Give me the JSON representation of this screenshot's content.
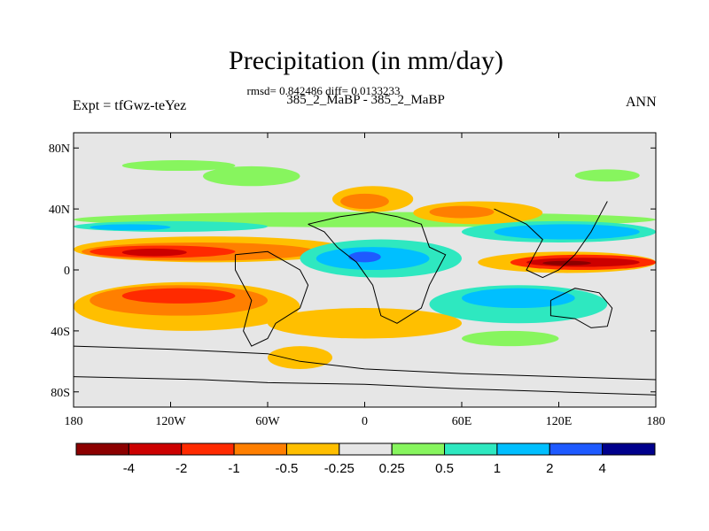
{
  "title": "Precipitation (in mm/day)",
  "stats_line": "rmsd= 0.842486 diff= 0.0133233",
  "subtitle": "385_2_MaBP - 385_2_MaBP",
  "left_label": "Expt = tfGwz-teYez",
  "right_label": "ANN",
  "map": {
    "lon_range": [
      -180,
      180
    ],
    "lat_range": [
      -90,
      90
    ],
    "x_ticks": [
      {
        "lon": -180,
        "label": "180"
      },
      {
        "lon": -120,
        "label": "120W"
      },
      {
        "lon": -60,
        "label": "60W"
      },
      {
        "lon": 0,
        "label": "0"
      },
      {
        "lon": 60,
        "label": "60E"
      },
      {
        "lon": 120,
        "label": "120E"
      },
      {
        "lon": 180,
        "label": "180"
      }
    ],
    "y_ticks": [
      {
        "lat": 80,
        "label": "80N"
      },
      {
        "lat": 40,
        "label": "40N"
      },
      {
        "lat": 0,
        "label": "0"
      },
      {
        "lat": -40,
        "label": "40S"
      },
      {
        "lat": -80,
        "label": "80S"
      }
    ],
    "background_color": "#e6e6e6",
    "colorbar": {
      "colors": [
        "#8c0000",
        "#cc0000",
        "#ff2a00",
        "#ff7f00",
        "#ffbf00",
        "#e6e6e6",
        "#87f55e",
        "#2ee8c0",
        "#00bfff",
        "#1e5aff",
        "#00008c"
      ],
      "labels": [
        "-4",
        "-2",
        "-1",
        "-0.5",
        "-0.25",
        "0.25",
        "0.5",
        "1",
        "2",
        "4"
      ]
    },
    "anomaly_regions": [
      {
        "level": "#87f55e",
        "lon": [
          -150,
          -80
        ],
        "lat": [
          65,
          72
        ]
      },
      {
        "level": "#87f55e",
        "lon": [
          -100,
          -40
        ],
        "lat": [
          55,
          68
        ]
      },
      {
        "level": "#87f55e",
        "lon": [
          130,
          170
        ],
        "lat": [
          58,
          66
        ]
      },
      {
        "level": "#87f55e",
        "lon": [
          -180,
          180
        ],
        "lat": [
          28,
          38
        ]
      },
      {
        "level": "#2ee8c0",
        "lon": [
          -180,
          -60
        ],
        "lat": [
          25,
          32
        ]
      },
      {
        "level": "#00bfff",
        "lon": [
          -170,
          -120
        ],
        "lat": [
          26,
          30
        ]
      },
      {
        "level": "#ffbf00",
        "lon": [
          -180,
          -10
        ],
        "lat": [
          5,
          22
        ]
      },
      {
        "level": "#ff7f00",
        "lon": [
          -175,
          -30
        ],
        "lat": [
          6,
          18
        ]
      },
      {
        "level": "#ff2a00",
        "lon": [
          -170,
          -80
        ],
        "lat": [
          8,
          16
        ]
      },
      {
        "level": "#cc0000",
        "lon": [
          -150,
          -110
        ],
        "lat": [
          9,
          14
        ]
      },
      {
        "level": "#ffbf00",
        "lon": [
          -180,
          -40
        ],
        "lat": [
          -40,
          -8
        ]
      },
      {
        "level": "#ff7f00",
        "lon": [
          -170,
          -60
        ],
        "lat": [
          -30,
          -10
        ]
      },
      {
        "level": "#ff2a00",
        "lon": [
          -150,
          -80
        ],
        "lat": [
          -22,
          -12
        ]
      },
      {
        "level": "#2ee8c0",
        "lon": [
          -40,
          60
        ],
        "lat": [
          -5,
          20
        ]
      },
      {
        "level": "#00bfff",
        "lon": [
          -30,
          40
        ],
        "lat": [
          0,
          15
        ]
      },
      {
        "level": "#1e5aff",
        "lon": [
          -10,
          10
        ],
        "lat": [
          5,
          12
        ]
      },
      {
        "level": "#ffbf00",
        "lon": [
          -20,
          30
        ],
        "lat": [
          38,
          55
        ]
      },
      {
        "level": "#ff7f00",
        "lon": [
          -15,
          15
        ],
        "lat": [
          40,
          50
        ]
      },
      {
        "level": "#ffbf00",
        "lon": [
          30,
          110
        ],
        "lat": [
          30,
          45
        ]
      },
      {
        "level": "#ff7f00",
        "lon": [
          40,
          80
        ],
        "lat": [
          34,
          42
        ]
      },
      {
        "level": "#2ee8c0",
        "lon": [
          60,
          180
        ],
        "lat": [
          18,
          32
        ]
      },
      {
        "level": "#00bfff",
        "lon": [
          80,
          170
        ],
        "lat": [
          20,
          30
        ]
      },
      {
        "level": "#ffbf00",
        "lon": [
          70,
          180
        ],
        "lat": [
          -2,
          12
        ]
      },
      {
        "level": "#ff2a00",
        "lon": [
          90,
          180
        ],
        "lat": [
          0,
          10
        ]
      },
      {
        "level": "#cc0000",
        "lon": [
          100,
          170
        ],
        "lat": [
          2,
          8
        ]
      },
      {
        "level": "#8c0000",
        "lon": [
          110,
          140
        ],
        "lat": [
          3,
          6
        ]
      },
      {
        "level": "#2ee8c0",
        "lon": [
          40,
          150
        ],
        "lat": [
          -35,
          -10
        ]
      },
      {
        "level": "#00bfff",
        "lon": [
          60,
          130
        ],
        "lat": [
          -25,
          -12
        ]
      },
      {
        "level": "#ffbf00",
        "lon": [
          -60,
          60
        ],
        "lat": [
          -45,
          -25
        ]
      },
      {
        "level": "#87f55e",
        "lon": [
          60,
          120
        ],
        "lat": [
          -50,
          -40
        ]
      },
      {
        "level": "#ffbf00",
        "lon": [
          -60,
          -20
        ],
        "lat": [
          -65,
          -50
        ]
      }
    ],
    "coastlines": [
      [
        [
          -180,
          -50
        ],
        [
          -120,
          -52
        ],
        [
          -60,
          -55
        ],
        [
          -40,
          -60
        ],
        [
          0,
          -65
        ],
        [
          60,
          -68
        ],
        [
          120,
          -70
        ],
        [
          180,
          -72
        ]
      ],
      [
        [
          -180,
          -70
        ],
        [
          -100,
          -72
        ],
        [
          -60,
          -74
        ],
        [
          0,
          -75
        ],
        [
          60,
          -78
        ],
        [
          120,
          -80
        ],
        [
          180,
          -82
        ]
      ],
      [
        [
          -35,
          30
        ],
        [
          -15,
          35
        ],
        [
          5,
          38
        ],
        [
          20,
          35
        ],
        [
          35,
          30
        ],
        [
          40,
          15
        ],
        [
          50,
          10
        ],
        [
          45,
          0
        ],
        [
          40,
          -10
        ],
        [
          35,
          -25
        ],
        [
          20,
          -35
        ],
        [
          10,
          -30
        ],
        [
          5,
          -10
        ],
        [
          -5,
          5
        ],
        [
          -17,
          15
        ],
        [
          -25,
          25
        ],
        [
          -35,
          30
        ]
      ],
      [
        [
          -80,
          10
        ],
        [
          -60,
          12
        ],
        [
          -40,
          0
        ],
        [
          -35,
          -10
        ],
        [
          -40,
          -25
        ],
        [
          -55,
          -35
        ],
        [
          -60,
          -45
        ],
        [
          -70,
          -50
        ],
        [
          -75,
          -40
        ],
        [
          -70,
          -20
        ],
        [
          -80,
          0
        ],
        [
          -80,
          10
        ]
      ],
      [
        [
          80,
          40
        ],
        [
          100,
          30
        ],
        [
          110,
          20
        ],
        [
          105,
          10
        ],
        [
          100,
          0
        ],
        [
          110,
          -5
        ],
        [
          120,
          0
        ],
        [
          130,
          10
        ],
        [
          140,
          25
        ],
        [
          145,
          35
        ],
        [
          150,
          45
        ]
      ],
      [
        [
          115,
          -20
        ],
        [
          130,
          -12
        ],
        [
          145,
          -15
        ],
        [
          153,
          -25
        ],
        [
          150,
          -37
        ],
        [
          140,
          -38
        ],
        [
          130,
          -32
        ],
        [
          115,
          -30
        ],
        [
          115,
          -20
        ]
      ]
    ]
  }
}
